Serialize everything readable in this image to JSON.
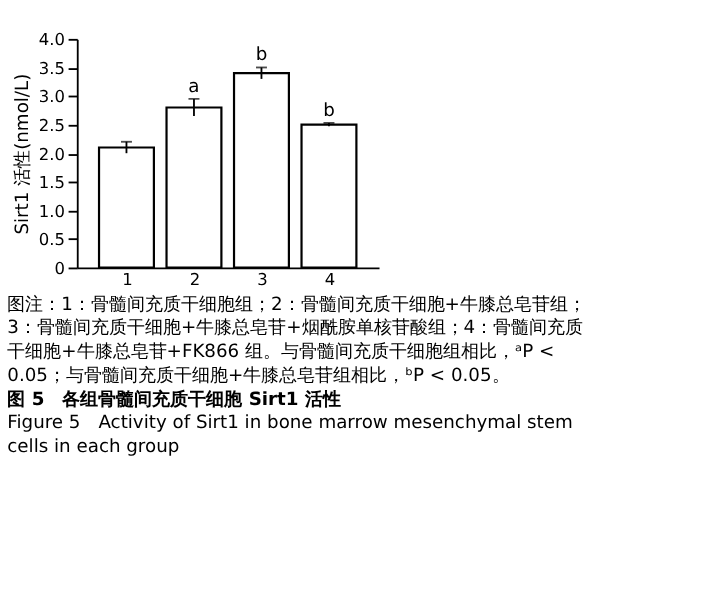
{
  "chart_data": {
    "type": "bar",
    "title": "图 5　各组骨髓间充质干细胞 Sirt1 活性",
    "subtitle": "Figure 5　Activity of Sirt1 in bone marrow mesenchymal stem cells in each group",
    "ylabel": "Sirt1 活性(nmol/L)",
    "categories": [
      "1",
      "2",
      "3",
      "4"
    ],
    "values": [
      2.1,
      2.8,
      3.4,
      2.5
    ],
    "errors": [
      0.1,
      0.15,
      0.1,
      0.03
    ],
    "color": "#ffffff",
    "ylim": [
      0,
      4
    ],
    "yticks": [
      0,
      0.5,
      {
        "value": 1,
        "label": "1.0"
      },
      1.5,
      {
        "value": 2,
        "label": "2.0"
      },
      2.5,
      {
        "value": 3,
        "label": "3.0"
      },
      3.5,
      {
        "value": 4,
        "label": "4.0"
      }
    ],
    "grid": false,
    "annotations": [
      {
        "text": "a",
        "x": "2",
        "y": 2.95
      },
      {
        "text": "b",
        "x": "3",
        "y": 3.5
      },
      {
        "text": "b",
        "x": "4",
        "y": 2.53
      },
      "图注：1：骨髓间充质干细胞组；2：骨髓间充质干细胞+牛膝总皂苷组；3：骨髓间充质干细胞+牛膝总皂苷+烟酰胺单核苷酸组；4：骨髓间充质干细胞+牛膝总皂苷+FK866 组。与骨髓间充质干细胞组相比，ᵃP < 0.05；与骨髓间充质干细胞+牛膝总皂苷组相比，ᵇP < 0.05。"
    ]
  }
}
